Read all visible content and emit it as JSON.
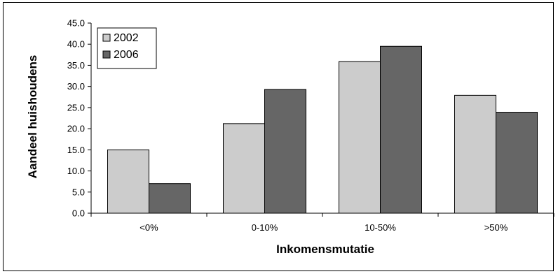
{
  "chart_data": {
    "type": "bar",
    "categories": [
      "<0%",
      "0-10%",
      "10-50%",
      ">50%"
    ],
    "series": [
      {
        "name": "2002",
        "values": [
          15.0,
          21.2,
          35.9,
          27.9
        ],
        "color": "#cccccc"
      },
      {
        "name": "2006",
        "values": [
          7.0,
          29.3,
          39.5,
          23.9
        ],
        "color": "#666666"
      }
    ],
    "xlabel": "Inkomensmutatie",
    "ylabel": "Aandeel huishoudens",
    "ylim": [
      0,
      45
    ],
    "yticks": [
      "0.0",
      "5.0",
      "10.0",
      "15.0",
      "20.0",
      "25.0",
      "30.0",
      "35.0",
      "40.0",
      "45.0"
    ],
    "grid": false,
    "legend_position": "top-left"
  }
}
